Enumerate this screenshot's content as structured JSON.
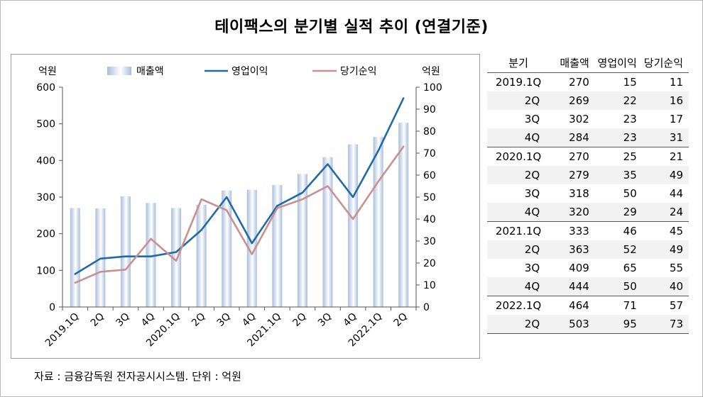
{
  "title": "테이팩스의 분기별 실적 추이 (연결기준)",
  "source_note": "자료 : 금융감독원 전자공시시스템. 단위 : 억원",
  "colors": {
    "revenue_bar": "#c5d3e6",
    "operating_line": "#1f6aa8",
    "net_line": "#c99090",
    "axis": "#555555",
    "table_stripe": "#f2f2f2"
  },
  "chart_data": {
    "type": "bar+line",
    "y_left_label": "억원",
    "y_right_label": "억원",
    "y_left_lim": [
      0,
      600
    ],
    "y_left_ticks": [
      "0",
      "100",
      "200",
      "300",
      "400",
      "500",
      "600"
    ],
    "y_right_lim": [
      0,
      100
    ],
    "y_right_ticks": [
      "0",
      "10",
      "20",
      "30",
      "40",
      "50",
      "60",
      "70",
      "80",
      "90",
      "100"
    ],
    "categories": [
      "2019.1Q",
      "2Q",
      "3Q",
      "4Q",
      "2020.1Q",
      "2Q",
      "3Q",
      "4Q",
      "2021.1Q",
      "2Q",
      "3Q",
      "4Q",
      "2022.1Q",
      "2Q"
    ],
    "series": [
      {
        "name": "매출액",
        "type": "bar",
        "axis": "left",
        "values": [
          270,
          269,
          302,
          284,
          270,
          279,
          318,
          320,
          333,
          363,
          409,
          444,
          464,
          503
        ]
      },
      {
        "name": "영업이익",
        "type": "line",
        "axis": "right",
        "values": [
          15,
          22,
          23,
          23,
          25,
          35,
          50,
          29,
          46,
          52,
          65,
          50,
          71,
          95
        ]
      },
      {
        "name": "당기순익",
        "type": "line",
        "axis": "right",
        "values": [
          11,
          16,
          17,
          31,
          21,
          49,
          44,
          24,
          45,
          49,
          55,
          40,
          57,
          73
        ]
      }
    ],
    "grid": false,
    "legend_position": "top"
  },
  "table": {
    "headers": [
      "분기",
      "매출액",
      "영업이익",
      "당기순익"
    ],
    "rows": [
      [
        "2019.1Q",
        "270",
        "15",
        "11"
      ],
      [
        "2Q",
        "269",
        "22",
        "16"
      ],
      [
        "3Q",
        "302",
        "23",
        "17"
      ],
      [
        "4Q",
        "284",
        "23",
        "31"
      ],
      [
        "2020.1Q",
        "270",
        "25",
        "21"
      ],
      [
        "2Q",
        "279",
        "35",
        "49"
      ],
      [
        "3Q",
        "318",
        "50",
        "44"
      ],
      [
        "4Q",
        "320",
        "29",
        "24"
      ],
      [
        "2021.1Q",
        "333",
        "46",
        "45"
      ],
      [
        "2Q",
        "363",
        "52",
        "49"
      ],
      [
        "3Q",
        "409",
        "65",
        "55"
      ],
      [
        "4Q",
        "444",
        "50",
        "40"
      ],
      [
        "2022.1Q",
        "464",
        "71",
        "57"
      ],
      [
        "2Q",
        "503",
        "95",
        "73"
      ]
    ]
  }
}
